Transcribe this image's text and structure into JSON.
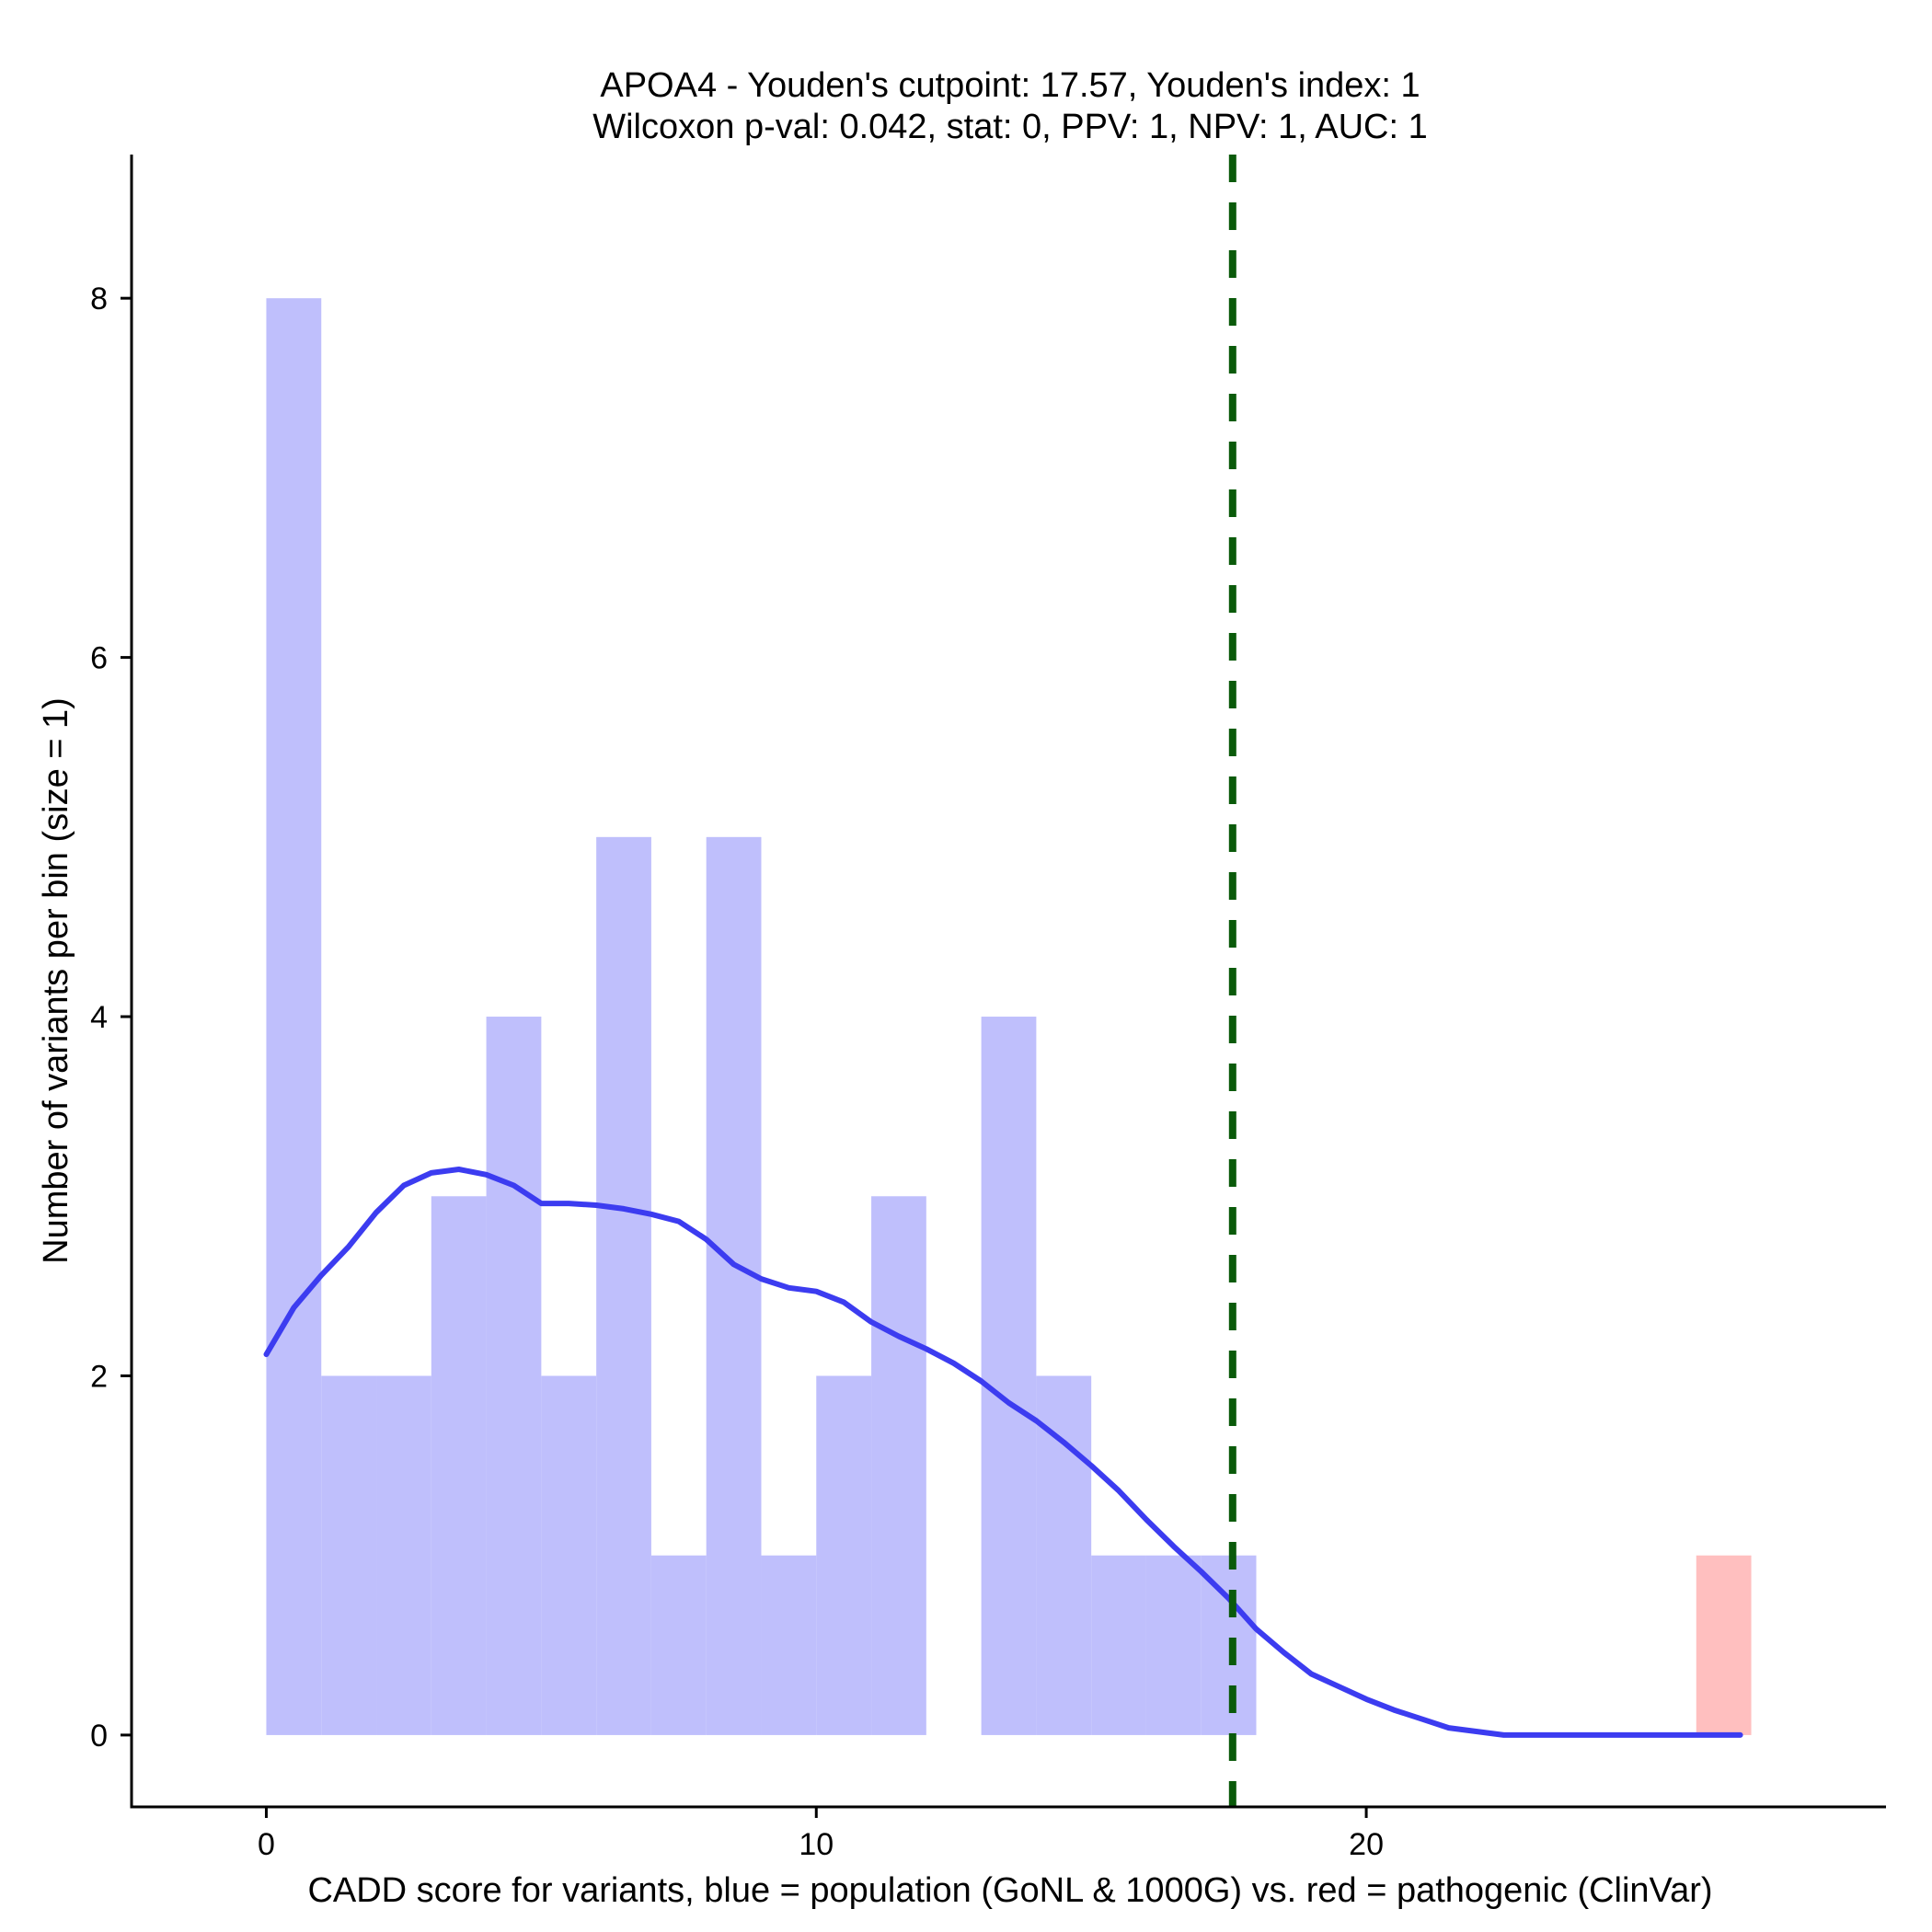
{
  "chart_data": {
    "type": "bar",
    "title_line1": "APOA4 - Youden's cutpoint: 17.57, Youden's index: 1",
    "title_line2": "Wilcoxon p-val: 0.042, stat: 0, PPV: 1, NPV: 1, AUC: 1",
    "xlabel": "CADD score for variants, blue = population (GoNL & 1000G) vs. red = pathogenic (ClinVar)",
    "ylabel": "Number of variants per bin (size = 1)",
    "xlim": [
      -2.45,
      29.45
    ],
    "ylim": [
      -0.4,
      8.8
    ],
    "x_ticks": [
      0,
      10,
      20
    ],
    "y_ticks": [
      0,
      2,
      4,
      6,
      8
    ],
    "bin_width": 1,
    "series": [
      {
        "name": "population (GoNL & 1000G)",
        "color": "#bfbffc",
        "bins": [
          {
            "start": 0,
            "count": 8
          },
          {
            "start": 1,
            "count": 2
          },
          {
            "start": 2,
            "count": 2
          },
          {
            "start": 3,
            "count": 3
          },
          {
            "start": 4,
            "count": 4
          },
          {
            "start": 5,
            "count": 2
          },
          {
            "start": 6,
            "count": 5
          },
          {
            "start": 7,
            "count": 1
          },
          {
            "start": 8,
            "count": 5
          },
          {
            "start": 9,
            "count": 1
          },
          {
            "start": 10,
            "count": 2
          },
          {
            "start": 11,
            "count": 3
          },
          {
            "start": 13,
            "count": 4
          },
          {
            "start": 14,
            "count": 2
          },
          {
            "start": 15,
            "count": 1
          },
          {
            "start": 16,
            "count": 1
          },
          {
            "start": 17,
            "count": 1
          }
        ]
      },
      {
        "name": "pathogenic (ClinVar)",
        "color": "#ffbfbf",
        "bins": [
          {
            "start": 26,
            "count": 1
          }
        ]
      }
    ],
    "density_curve": {
      "name": "population density",
      "color": "#3c3cf0",
      "points": [
        [
          0,
          2.12
        ],
        [
          0.5,
          2.38
        ],
        [
          1,
          2.56
        ],
        [
          1.5,
          2.72
        ],
        [
          2,
          2.91
        ],
        [
          2.5,
          3.06
        ],
        [
          3,
          3.13
        ],
        [
          3.5,
          3.15
        ],
        [
          4,
          3.12
        ],
        [
          4.5,
          3.06
        ],
        [
          5,
          2.96
        ],
        [
          5.5,
          2.96
        ],
        [
          6,
          2.95
        ],
        [
          6.5,
          2.93
        ],
        [
          7,
          2.9
        ],
        [
          7.5,
          2.86
        ],
        [
          8,
          2.76
        ],
        [
          8.5,
          2.62
        ],
        [
          9,
          2.54
        ],
        [
          9.5,
          2.49
        ],
        [
          10,
          2.47
        ],
        [
          10.5,
          2.41
        ],
        [
          11,
          2.3
        ],
        [
          11.5,
          2.22
        ],
        [
          12,
          2.15
        ],
        [
          12.5,
          2.07
        ],
        [
          13,
          1.97
        ],
        [
          13.5,
          1.85
        ],
        [
          14,
          1.75
        ],
        [
          14.5,
          1.63
        ],
        [
          15,
          1.5
        ],
        [
          15.5,
          1.36
        ],
        [
          16,
          1.2
        ],
        [
          16.5,
          1.05
        ],
        [
          17,
          0.91
        ],
        [
          17.5,
          0.76
        ],
        [
          18,
          0.59
        ],
        [
          18.5,
          0.46
        ],
        [
          19,
          0.34
        ],
        [
          19.5,
          0.27
        ],
        [
          20,
          0.2
        ],
        [
          20.5,
          0.14
        ],
        [
          21,
          0.09
        ],
        [
          21.5,
          0.04
        ],
        [
          22,
          0.02
        ],
        [
          22.5,
          0.0
        ],
        [
          23,
          0.0
        ],
        [
          24,
          0.0
        ],
        [
          25,
          0.0
        ],
        [
          26,
          0.0
        ],
        [
          26.8,
          0.0
        ]
      ]
    },
    "cutpoint": {
      "label": "Youden's cutpoint",
      "value": 17.57,
      "color": "#0a5a0a"
    }
  }
}
